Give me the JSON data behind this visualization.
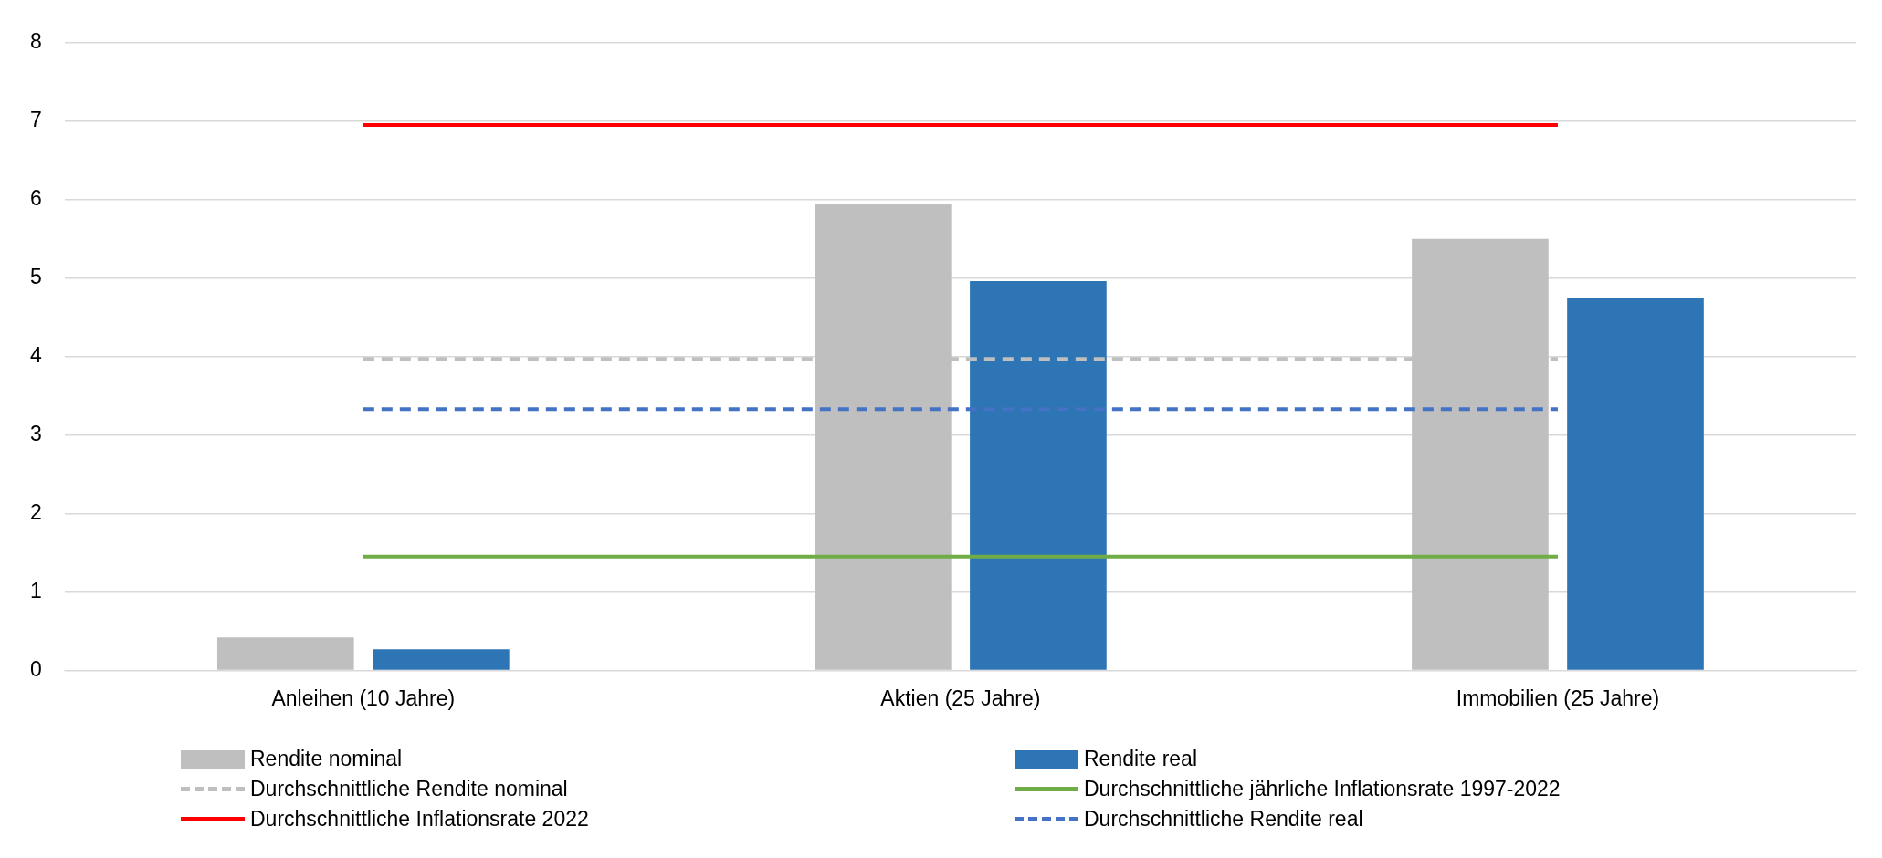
{
  "chart_data": {
    "type": "bar",
    "categories": [
      "Anleihen (10 Jahre)",
      "Aktien (25 Jahre)",
      "Immobilien (25 Jahre)"
    ],
    "series": [
      {
        "name": "Rendite nominal",
        "color": "#bfbfbf",
        "values": [
          0.42,
          5.95,
          5.5
        ]
      },
      {
        "name": "Rendite real",
        "color": "#2e75b6",
        "values": [
          0.27,
          4.96,
          4.74
        ]
      },
      {
        "name": "Durchschnittliche Rendite nominal",
        "type": "line",
        "color": "#bfbfbf",
        "line_style": "dashed",
        "values": [
          3.97,
          3.97,
          3.97
        ]
      },
      {
        "name": "Durchschnittliche jährliche Inflationsrate 1997-2022",
        "type": "line",
        "color": "#70ad47",
        "line_style": "solid",
        "values": [
          1.45,
          1.45,
          1.45
        ]
      },
      {
        "name": "Durchschnittliche Inflationsrate 2022",
        "type": "line",
        "color": "#ff0000",
        "line_style": "solid",
        "values": [
          6.95,
          6.95,
          6.95
        ]
      },
      {
        "name": "Durchschnittliche Rendite real",
        "type": "line",
        "color": "#4472c4",
        "line_style": "dashed",
        "values": [
          3.33,
          3.33,
          3.33
        ]
      }
    ],
    "ylim": [
      0,
      8
    ],
    "yticks": [
      0,
      1,
      2,
      3,
      4,
      5,
      6,
      7,
      8
    ],
    "grid": "y",
    "legend": "bottom",
    "marker": "none"
  }
}
